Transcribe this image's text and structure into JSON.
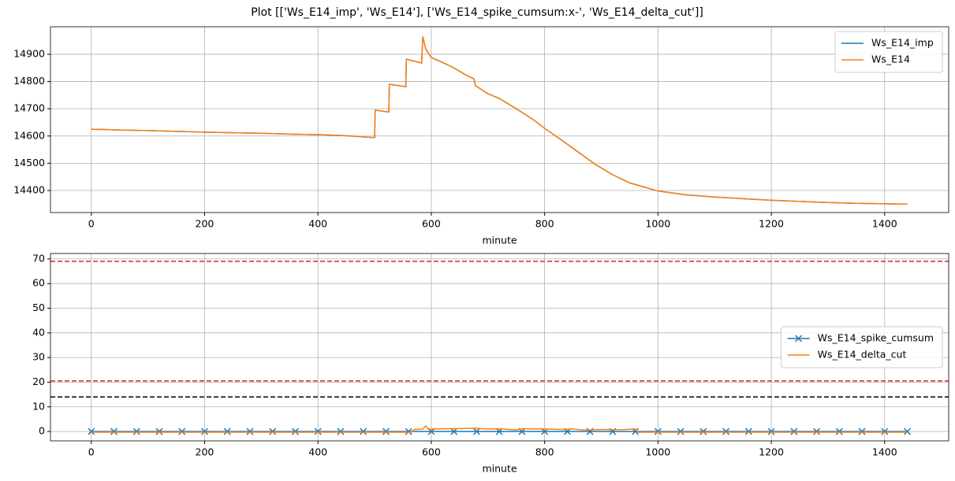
{
  "title": "Plot [['Ws_E14_imp', 'Ws_E14'], ['Ws_E14_spike_cumsum:x-', 'Ws_E14_delta_cut']]",
  "chart_data": [
    {
      "type": "line",
      "x_label": "minute",
      "grid": true,
      "legend": "upper right",
      "xlim": [
        -72,
        1513
      ],
      "xticks": [
        0,
        200,
        400,
        600,
        800,
        1000,
        1200,
        1400
      ],
      "ylim": [
        14319,
        15001
      ],
      "yticks": [
        14400,
        14500,
        14600,
        14700,
        14800,
        14900
      ],
      "x": [
        0,
        50,
        100,
        150,
        200,
        250,
        300,
        350,
        400,
        450,
        500,
        501,
        525,
        526,
        555,
        556,
        583,
        585,
        590,
        600,
        620,
        640,
        660,
        675,
        678,
        700,
        720,
        750,
        780,
        800,
        830,
        860,
        890,
        920,
        950,
        980,
        1000,
        1050,
        1100,
        1150,
        1200,
        1250,
        1300,
        1350,
        1400,
        1440
      ],
      "series": [
        {
          "name": "Ws_E14_imp",
          "color": "#1f77b4",
          "values": [
            14625,
            14622,
            14620,
            14617,
            14614,
            14612,
            14610,
            14607,
            14605,
            14601,
            14594,
            14695,
            14688,
            14790,
            14781,
            14882,
            14868,
            14965,
            14920,
            14888,
            14870,
            14850,
            14825,
            14810,
            14785,
            14755,
            14738,
            14700,
            14660,
            14628,
            14585,
            14540,
            14495,
            14458,
            14428,
            14410,
            14398,
            14384,
            14376,
            14370,
            14364,
            14360,
            14356,
            14353,
            14351,
            14350
          ]
        },
        {
          "name": "Ws_E14",
          "color": "#ff7f0e",
          "values": [
            14625,
            14622,
            14620,
            14617,
            14614,
            14612,
            14610,
            14607,
            14605,
            14601,
            14594,
            14695,
            14688,
            14790,
            14781,
            14882,
            14868,
            14965,
            14920,
            14888,
            14870,
            14850,
            14825,
            14810,
            14785,
            14755,
            14738,
            14700,
            14660,
            14628,
            14585,
            14540,
            14495,
            14458,
            14428,
            14410,
            14398,
            14384,
            14376,
            14370,
            14364,
            14360,
            14356,
            14353,
            14351,
            14350
          ]
        }
      ]
    },
    {
      "type": "line",
      "x_label": "minute",
      "grid": true,
      "legend": "center right",
      "xlim": [
        -72,
        1513
      ],
      "xticks": [
        0,
        200,
        400,
        600,
        800,
        1000,
        1200,
        1400
      ],
      "ylim": [
        -3.8,
        72.2
      ],
      "yticks": [
        0,
        10,
        20,
        30,
        40,
        50,
        60,
        70
      ],
      "hlines": [
        {
          "value": 69,
          "color": "#d62728"
        },
        {
          "value": 20.5,
          "color": "#d62728"
        },
        {
          "value": 14,
          "color": "#000000"
        }
      ],
      "series": [
        {
          "name": "Ws_E14_spike_cumsum",
          "color": "#1f77b4",
          "marker": "x",
          "x": [
            0,
            40,
            80,
            120,
            160,
            200,
            240,
            280,
            320,
            360,
            400,
            440,
            480,
            520,
            560,
            600,
            640,
            680,
            720,
            760,
            800,
            840,
            880,
            920,
            960,
            1000,
            1040,
            1080,
            1120,
            1160,
            1200,
            1240,
            1280,
            1320,
            1360,
            1400,
            1440
          ],
          "values": [
            0,
            0,
            0,
            0,
            0,
            0,
            0,
            0,
            0,
            0,
            0,
            0,
            0,
            0,
            0,
            0,
            0,
            0,
            0,
            0,
            0,
            0,
            0,
            0,
            0,
            0,
            0,
            0,
            0,
            0,
            0,
            0,
            0,
            0,
            0,
            0,
            0
          ]
        },
        {
          "name": "Ws_E14_delta_cut",
          "color": "#ff7f0e",
          "x": [
            0,
            565,
            570,
            585,
            590,
            595,
            600,
            650,
            680,
            700,
            720,
            750,
            760,
            800,
            830,
            850,
            870,
            900,
            930,
            960,
            965,
            1440
          ],
          "values": [
            -0.3,
            -0.3,
            0.8,
            1,
            2.3,
            0.8,
            1,
            1.2,
            1.3,
            1,
            1.1,
            0.6,
            1.1,
            1,
            0.8,
            1,
            0.6,
            0.8,
            0.7,
            1,
            -0.3,
            -0.3
          ]
        }
      ]
    }
  ]
}
